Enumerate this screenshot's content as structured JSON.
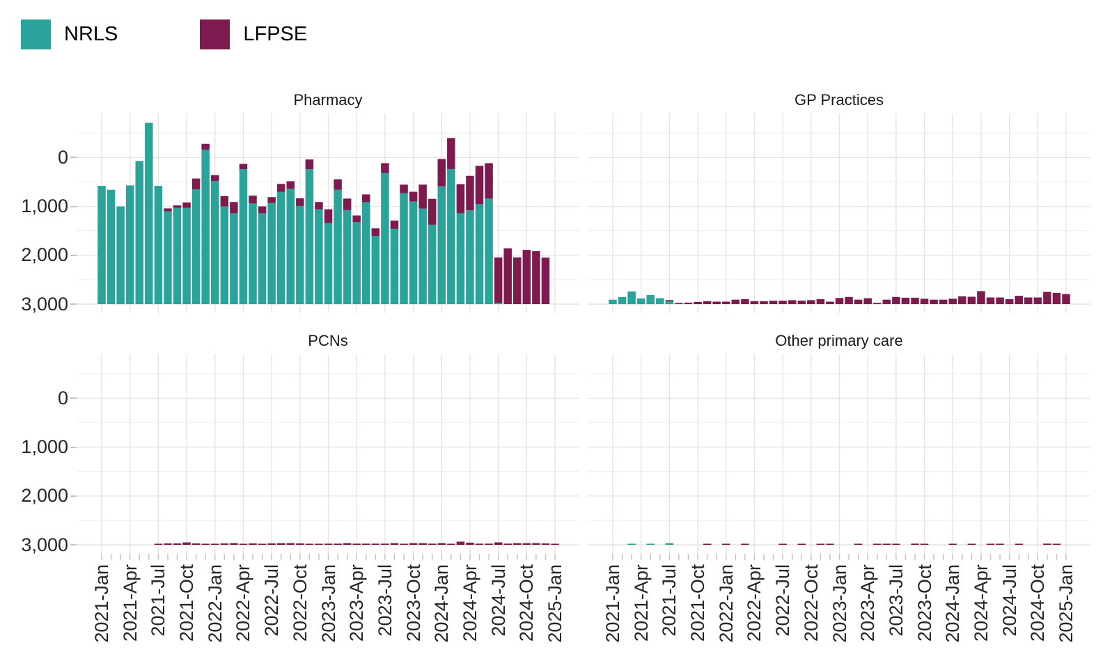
{
  "legend": {
    "items": [
      {
        "label": "NRLS",
        "color": "#2aa39a"
      },
      {
        "label": "LFPSE",
        "color": "#7d1a4e"
      }
    ]
  },
  "axes": {
    "y_tick_labels": [
      "3,000",
      "2,000",
      "1,000",
      "0"
    ],
    "y_tick_values": [
      3000,
      2000,
      1000,
      0
    ],
    "x_tick_labels": [
      "2021-Jan",
      "2021-Apr",
      "2021-Jul",
      "2021-Oct",
      "2022-Jan",
      "2022-Apr",
      "2022-Jul",
      "2022-Oct",
      "2023-Jan",
      "2023-Apr",
      "2023-Jul",
      "2023-Oct",
      "2024-Jan",
      "2024-Apr",
      "2024-Jul",
      "2024-Oct",
      "2025-Jan"
    ]
  },
  "chart_data": {
    "type": "bar",
    "stacked": true,
    "legend_position": "top-left",
    "grid": "on",
    "ylim": [
      0,
      3900
    ],
    "categories": [
      "2021-Jan",
      "2021-Feb",
      "2021-Mar",
      "2021-Apr",
      "2021-May",
      "2021-Jun",
      "2021-Jul",
      "2021-Aug",
      "2021-Sep",
      "2021-Oct",
      "2021-Nov",
      "2021-Dec",
      "2022-Jan",
      "2022-Feb",
      "2022-Mar",
      "2022-Apr",
      "2022-May",
      "2022-Jun",
      "2022-Jul",
      "2022-Aug",
      "2022-Sep",
      "2022-Oct",
      "2022-Nov",
      "2022-Dec",
      "2023-Jan",
      "2023-Feb",
      "2023-Mar",
      "2023-Apr",
      "2023-May",
      "2023-Jun",
      "2023-Jul",
      "2023-Aug",
      "2023-Sep",
      "2023-Oct",
      "2023-Nov",
      "2023-Dec",
      "2024-Jan",
      "2024-Feb",
      "2024-Mar",
      "2024-Apr",
      "2024-May",
      "2024-Jun",
      "2024-Jul",
      "2024-Aug",
      "2024-Sep",
      "2024-Oct",
      "2024-Nov",
      "2024-Dec",
      "2025-Jan"
    ],
    "facets": [
      {
        "title": "Pharmacy",
        "series": [
          {
            "name": "NRLS",
            "values": [
              2420,
              2340,
              2000,
              2430,
              2930,
              3710,
              2420,
              1900,
              1970,
              1970,
              2350,
              3160,
              2520,
              2000,
              1860,
              2760,
              2060,
              1860,
              2070,
              2300,
              2360,
              2010,
              2760,
              1940,
              1660,
              2340,
              1925,
              1680,
              2085,
              1395,
              2685,
              1540,
              2270,
              2100,
              1955,
              1625,
              2410,
              2765,
              1860,
              1920,
              2045,
              2160,
              15,
              0,
              0,
              0,
              0,
              0,
              0
            ]
          },
          {
            "name": "LFPSE",
            "values": [
              0,
              0,
              0,
              0,
              0,
              0,
              0,
              60,
              50,
              110,
              220,
              120,
              120,
              210,
              230,
              110,
              160,
              140,
              120,
              160,
              155,
              155,
              200,
              150,
              280,
              215,
              235,
              135,
              160,
              155,
              200,
              170,
              175,
              200,
              490,
              530,
              560,
              635,
              595,
              705,
              785,
              725,
              930,
              1140,
              955,
              1110,
              1085,
              950,
              0
            ]
          }
        ]
      },
      {
        "title": "GP Practices",
        "series": [
          {
            "name": "NRLS",
            "values": [
              90,
              145,
              260,
              115,
              185,
              120,
              60,
              0,
              0,
              0,
              0,
              0,
              0,
              0,
              0,
              0,
              0,
              0,
              0,
              0,
              0,
              0,
              0,
              0,
              0,
              0,
              0,
              0,
              0,
              0,
              0,
              0,
              0,
              0,
              0,
              0,
              0,
              0,
              0,
              0,
              0,
              0,
              0,
              0,
              0,
              0,
              0,
              0,
              0
            ]
          },
          {
            "name": "LFPSE",
            "values": [
              0,
              0,
              0,
              0,
              0,
              0,
              15,
              15,
              30,
              45,
              60,
              50,
              50,
              90,
              100,
              60,
              60,
              70,
              70,
              80,
              70,
              80,
              100,
              50,
              125,
              145,
              90,
              120,
              25,
              90,
              145,
              130,
              130,
              110,
              90,
              90,
              110,
              160,
              150,
              265,
              135,
              135,
              100,
              170,
              135,
              135,
              250,
              230,
              205
            ]
          }
        ]
      },
      {
        "title": "PCNs",
        "series": [
          {
            "name": "NRLS",
            "values": [
              0,
              0,
              0,
              0,
              0,
              0,
              0,
              0,
              0,
              0,
              0,
              0,
              0,
              0,
              0,
              0,
              0,
              0,
              0,
              0,
              0,
              0,
              0,
              0,
              0,
              0,
              0,
              0,
              0,
              0,
              0,
              0,
              0,
              0,
              0,
              0,
              0,
              0,
              0,
              0,
              0,
              0,
              0,
              0,
              0,
              0,
              0,
              0,
              0
            ]
          },
          {
            "name": "LFPSE",
            "values": [
              0,
              0,
              0,
              0,
              0,
              0,
              15,
              30,
              30,
              50,
              30,
              10,
              15,
              30,
              35,
              15,
              30,
              15,
              30,
              35,
              35,
              30,
              15,
              15,
              25,
              25,
              35,
              25,
              25,
              25,
              25,
              35,
              20,
              35,
              35,
              25,
              35,
              20,
              65,
              45,
              25,
              25,
              50,
              25,
              35,
              35,
              35,
              30,
              20
            ]
          }
        ]
      },
      {
        "title": "Other primary care",
        "series": [
          {
            "name": "NRLS",
            "values": [
              0,
              0,
              20,
              0,
              15,
              0,
              35,
              0,
              0,
              0,
              0,
              0,
              0,
              0,
              0,
              0,
              0,
              0,
              0,
              0,
              0,
              0,
              0,
              0,
              0,
              0,
              0,
              0,
              0,
              0,
              0,
              0,
              0,
              0,
              0,
              0,
              0,
              0,
              0,
              0,
              0,
              0,
              0,
              0,
              0,
              0,
              0,
              0,
              0
            ]
          },
          {
            "name": "LFPSE",
            "values": [
              0,
              0,
              0,
              0,
              0,
              0,
              0,
              0,
              0,
              0,
              10,
              0,
              10,
              0,
              10,
              0,
              0,
              0,
              10,
              0,
              10,
              0,
              10,
              10,
              0,
              0,
              10,
              0,
              8,
              8,
              8,
              0,
              25,
              10,
              0,
              0,
              10,
              0,
              10,
              0,
              10,
              10,
              0,
              10,
              0,
              0,
              25,
              18,
              0
            ]
          }
        ]
      }
    ]
  }
}
